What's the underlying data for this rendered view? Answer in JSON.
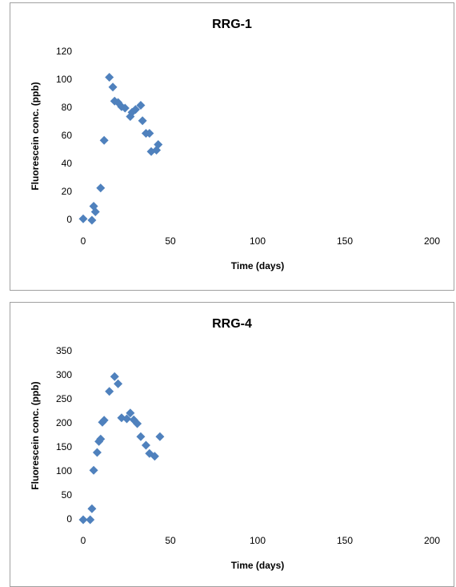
{
  "chart_data": [
    {
      "type": "scatter",
      "title": "RRG-1",
      "xlabel": "Time (days)",
      "ylabel": "Fluorescein conc. (ppb)",
      "color": "#4f81bd",
      "x": [
        0,
        5,
        6,
        7,
        10,
        12,
        15,
        17,
        18,
        20,
        22,
        24,
        27,
        28,
        30,
        33,
        34,
        36,
        38,
        39,
        42,
        43
      ],
      "values": [
        1,
        0,
        10,
        6,
        23,
        57,
        102,
        95,
        85,
        84,
        81,
        80,
        74,
        77,
        79,
        82,
        71,
        62,
        62,
        49,
        50,
        54
      ],
      "xlim": [
        0,
        200
      ],
      "xticks": [
        0,
        50,
        100,
        150,
        200
      ],
      "ylim": [
        0,
        120
      ],
      "yticks": [
        0,
        20,
        40,
        60,
        80,
        100,
        120
      ]
    },
    {
      "type": "scatter",
      "title": "RRG-4",
      "xlabel": "Time (days)",
      "ylabel": "Fluorescein conc. (ppb)",
      "color": "#4f81bd",
      "x": [
        0,
        4,
        5,
        6,
        8,
        9,
        10,
        11,
        12,
        15,
        18,
        20,
        22,
        25,
        27,
        29,
        31,
        33,
        36,
        38,
        41,
        44
      ],
      "values": [
        0,
        0,
        23,
        103,
        140,
        163,
        168,
        203,
        207,
        267,
        298,
        283,
        212,
        210,
        222,
        208,
        200,
        173,
        155,
        138,
        132,
        173
      ],
      "xlim": [
        0,
        200
      ],
      "xticks": [
        0,
        50,
        100,
        150,
        200
      ],
      "ylim": [
        0,
        350
      ],
      "yticks": [
        0,
        50,
        100,
        150,
        200,
        250,
        300,
        350
      ]
    }
  ]
}
